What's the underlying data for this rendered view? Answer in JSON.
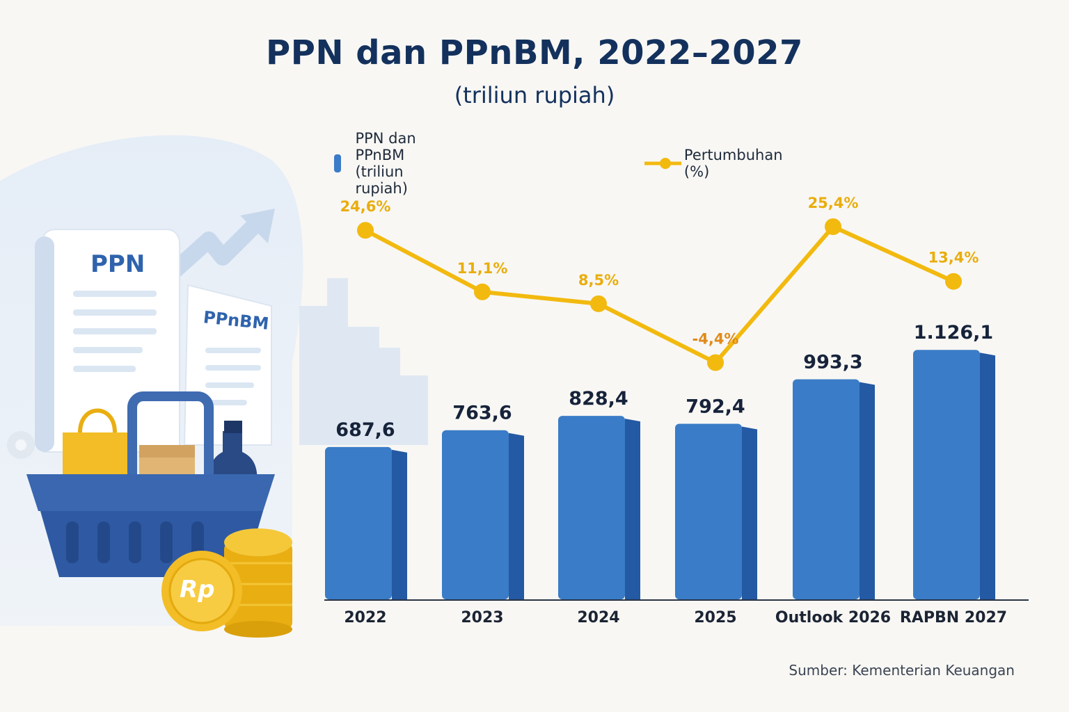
{
  "header": {
    "title": "PPN dan PPnBM, 2022–2027",
    "subtitle": "(triliun rupiah)"
  },
  "legend": {
    "bar_label": "PPN dan PPnBM (triliun rupiah)",
    "line_label": "Pertumbuhan (%)"
  },
  "illustration": {
    "receipt_1": "PPN",
    "receipt_2": "PPnBM",
    "coin": "Rp"
  },
  "footer": {
    "source": "Sumber: Kementerian Keuangan"
  },
  "colors": {
    "bar": "#3a7cc7",
    "bar_dark": "#2459a3",
    "line": "#f2b90f",
    "title": "#13315c",
    "negative_label": "#e08a1b"
  },
  "chart_data": {
    "type": "bar",
    "categories": [
      "2022",
      "2023",
      "2024",
      "2025",
      "Outlook 2026",
      "RAPBN 2027"
    ],
    "series": [
      {
        "name": "PPN dan PPnBM (triliun rupiah)",
        "type": "bar",
        "values": [
          687.6,
          763.6,
          828.4,
          792.4,
          993.3,
          1126.1
        ],
        "labels": [
          "687,6",
          "763,6",
          "828,4",
          "792,4",
          "993,3",
          "1.126,1"
        ]
      },
      {
        "name": "Pertumbuhan (%)",
        "type": "line",
        "values": [
          24.6,
          11.1,
          8.5,
          -4.4,
          25.4,
          13.4
        ],
        "labels": [
          "24,6%",
          "11,1%",
          "8,5%",
          "-4,4%",
          "25,4%",
          "13,4%"
        ]
      }
    ],
    "title": "PPN dan PPnBM, 2022–2027",
    "subtitle": "(triliun rupiah)",
    "legend_position": "top",
    "grid": false
  }
}
